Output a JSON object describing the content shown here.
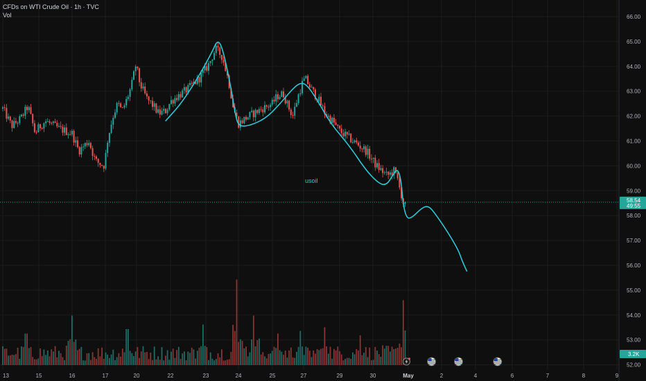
{
  "header": {
    "title": "CFDs on WTI Crude Oil · 1h · TVC",
    "vol_label": "Vol"
  },
  "chart_data": {
    "type": "candlestick",
    "ylim": [
      52,
      66
    ],
    "yticks": [
      "66.00",
      "65.00",
      "64.00",
      "63.00",
      "62.00",
      "61.00",
      "60.00",
      "59.00",
      "58.00",
      "57.00",
      "56.00",
      "55.00",
      "54.00",
      "53.00",
      "52.00"
    ],
    "xticks": [
      "13",
      "15",
      "16",
      "17",
      "20",
      "22",
      "23",
      "24",
      "25",
      "27",
      "29",
      "30",
      "May",
      "2",
      "4",
      "6",
      "7",
      "8",
      "9"
    ],
    "current_price": 58.54,
    "countdown": "49:55",
    "volume_label": "3.2K",
    "annotation": "usoil",
    "path_waypoints": [
      [
        21.7,
        61.8
      ],
      [
        22.3,
        62.5
      ],
      [
        22.8,
        63.6
      ],
      [
        23.2,
        64.6
      ],
      [
        23.35,
        65.05
      ],
      [
        23.5,
        64.8
      ],
      [
        23.75,
        63.3
      ],
      [
        23.9,
        62.1
      ],
      [
        24.0,
        61.6
      ],
      [
        24.3,
        61.6
      ],
      [
        24.8,
        61.9
      ],
      [
        25.5,
        62.5
      ],
      [
        26.3,
        63.1
      ],
      [
        26.8,
        63.35
      ],
      [
        27.2,
        63.25
      ],
      [
        27.8,
        62.6
      ],
      [
        28.5,
        61.7
      ],
      [
        29.3,
        60.8
      ],
      [
        29.8,
        59.8
      ],
      [
        30.2,
        59.25
      ],
      [
        30.4,
        59.25
      ],
      [
        30.55,
        59.6
      ],
      [
        30.7,
        59.9
      ],
      [
        30.8,
        59.4
      ],
      [
        30.85,
        58.5
      ],
      [
        30.95,
        57.9
      ],
      [
        31.1,
        57.9
      ],
      [
        31.4,
        58.3
      ],
      [
        31.6,
        58.4
      ],
      [
        31.8,
        58.1
      ],
      [
        32.2,
        57.3
      ],
      [
        32.5,
        56.6
      ],
      [
        32.6,
        56.2
      ],
      [
        32.75,
        55.75
      ]
    ],
    "price_path": [
      [
        13.0,
        62.3
      ],
      [
        13.5,
        61.6
      ],
      [
        14.0,
        61.9
      ],
      [
        14.4,
        62.4
      ],
      [
        14.8,
        61.3
      ],
      [
        15.2,
        61.8
      ],
      [
        15.6,
        61.5
      ],
      [
        16.0,
        61.3
      ],
      [
        16.2,
        60.6
      ],
      [
        16.5,
        61.0
      ],
      [
        16.7,
        60.2
      ],
      [
        16.95,
        60.0
      ],
      [
        17.1,
        60.8
      ],
      [
        17.4,
        61.4
      ],
      [
        17.8,
        62.1
      ],
      [
        18.2,
        62.5
      ],
      [
        18.6,
        62.2
      ],
      [
        19.0,
        62.6
      ],
      [
        19.5,
        63.2
      ],
      [
        19.8,
        63.8
      ],
      [
        19.95,
        64.1
      ],
      [
        20.2,
        63.3
      ],
      [
        20.6,
        62.7
      ],
      [
        21.0,
        62.4
      ],
      [
        21.3,
        62.1
      ],
      [
        21.7,
        62.2
      ],
      [
        22.1,
        62.7
      ],
      [
        22.5,
        63.1
      ],
      [
        22.8,
        63.5
      ],
      [
        23.1,
        64.1
      ],
      [
        23.3,
        64.7
      ],
      [
        23.5,
        64.4
      ],
      [
        23.7,
        63.4
      ],
      [
        23.85,
        62.3
      ],
      [
        24.0,
        61.7
      ],
      [
        24.3,
        62.0
      ],
      [
        24.7,
        62.3
      ],
      [
        25.0,
        62.5
      ],
      [
        25.3,
        62.8
      ],
      [
        25.7,
        62.9
      ],
      [
        26.0,
        62.4
      ],
      [
        26.3,
        62.0
      ],
      [
        26.6,
        62.7
      ],
      [
        26.9,
        63.3
      ],
      [
        27.1,
        63.5
      ],
      [
        27.5,
        63.0
      ],
      [
        27.8,
        62.7
      ],
      [
        28.2,
        62.1
      ],
      [
        28.6,
        61.8
      ],
      [
        29.0,
        61.4
      ],
      [
        29.4,
        61.0
      ],
      [
        29.8,
        60.6
      ],
      [
        30.1,
        60.0
      ],
      [
        30.4,
        59.6
      ],
      [
        30.6,
        59.8
      ],
      [
        30.75,
        59.3
      ],
      [
        30.85,
        58.3
      ],
      [
        30.95,
        58.5
      ]
    ],
    "volume_spikes": [
      [
        14.3,
        0.35
      ],
      [
        16.0,
        0.55
      ],
      [
        19.1,
        0.4
      ],
      [
        22.9,
        0.45
      ],
      [
        23.95,
        0.95
      ],
      [
        24.45,
        0.55
      ],
      [
        25.3,
        0.35
      ],
      [
        26.8,
        0.38
      ],
      [
        28.2,
        0.42
      ],
      [
        29.6,
        0.33
      ],
      [
        30.85,
        0.72
      ]
    ],
    "event_markers": [
      {
        "x": 30.95,
        "type": "lightning"
      },
      {
        "x": 31.7,
        "type": "us-flag"
      },
      {
        "x": 32.5,
        "type": "us-flag"
      },
      {
        "x": 33.6,
        "type": "us-flag"
      }
    ]
  },
  "colors": {
    "up": "#26a69a",
    "down": "#ef5350",
    "path": "#2ec7d6",
    "price_label_bg": "#26a69a",
    "grid": "#1c1c1c"
  }
}
